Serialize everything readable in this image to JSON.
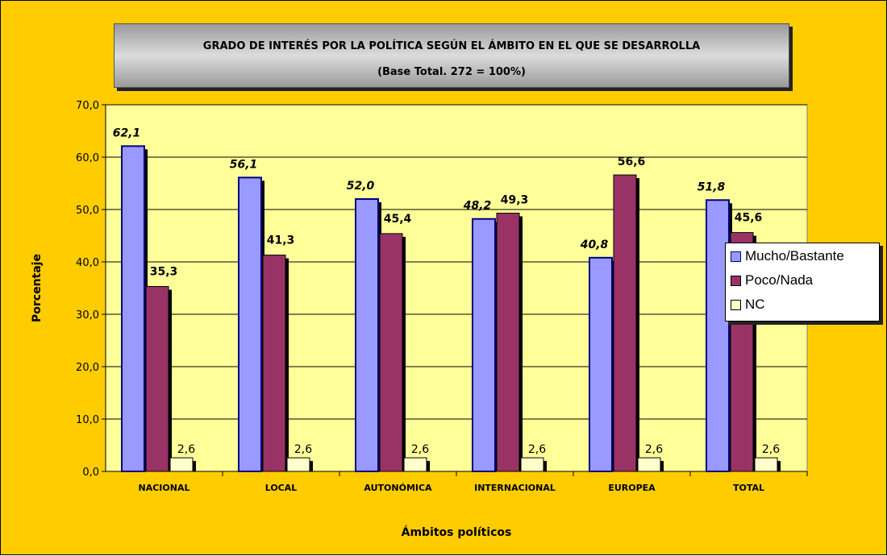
{
  "chart_data": {
    "type": "bar",
    "title": "GRADO DE INTERÉS POR LA POLÍTICA SEGÚN EL ÁMBITO EN EL QUE SE DESARROLLA",
    "subtitle": "(Base Total. 272 = 100%)",
    "xlabel": "Ámbitos políticos",
    "ylabel": "Porcentaje",
    "ylim": [
      0,
      70
    ],
    "yticks": [
      "0,0",
      "10,0",
      "20,0",
      "30,0",
      "40,0",
      "50,0",
      "60,0",
      "70,0"
    ],
    "categories": [
      "NACIONAL",
      "LOCAL",
      "AUTONÓMICA",
      "INTERNACIONAL",
      "EUROPEA",
      "TOTAL"
    ],
    "series": [
      {
        "name": "Mucho/Bastante",
        "color": "#9999ff",
        "values": [
          62.1,
          56.1,
          52.0,
          48.2,
          40.8,
          51.8
        ],
        "labels": [
          "62,1",
          "56,1",
          "52,0",
          "48,2",
          "40,8",
          "51,8"
        ]
      },
      {
        "name": "Poco/Nada",
        "color": "#993366",
        "values": [
          35.3,
          41.3,
          45.4,
          49.3,
          56.6,
          45.6
        ],
        "labels": [
          "35,3",
          "41,3",
          "45,4",
          "49,3",
          "56,6",
          "45,6"
        ]
      },
      {
        "name": "NC",
        "color": "#ffffcc",
        "values": [
          2.6,
          2.6,
          2.6,
          2.6,
          2.6,
          2.6
        ],
        "labels": [
          "2,6",
          "2,6",
          "2,6",
          "2,6",
          "2,6",
          "2,6"
        ]
      }
    ],
    "grid": true,
    "legend_position": "right",
    "plot_background": "#ffff99",
    "chart_background": "#ffcc00"
  }
}
